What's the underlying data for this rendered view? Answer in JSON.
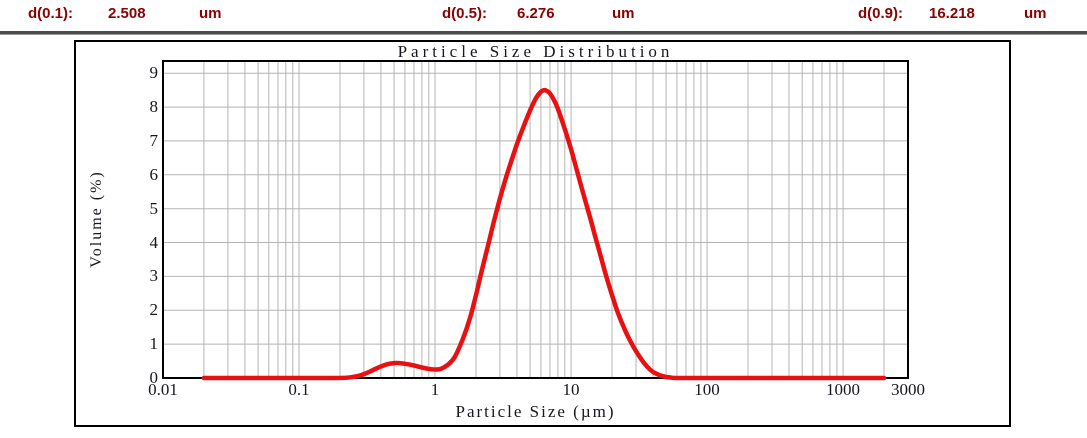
{
  "header": {
    "items": [
      {
        "label": "d(0.1):",
        "value": "2.508",
        "unit": "um"
      },
      {
        "label": "d(0.5):",
        "value": "6.276",
        "unit": "um"
      },
      {
        "label": "d(0.9):",
        "value": "16.218",
        "unit": "um"
      }
    ]
  },
  "chart_data": {
    "type": "line",
    "title": "Particle Size Distribution",
    "xlabel": "Particle Size (µm)",
    "ylabel": "Volume (%)",
    "x_scale": "log",
    "xlim": [
      0.01,
      3000
    ],
    "ylim": [
      0,
      9
    ],
    "grid": true,
    "legend": "none",
    "colors": {
      "curve": "#e81010",
      "grid": "#b5b5b5",
      "axis": "#000000",
      "text": "#16161e",
      "header_accent": "#8b0000"
    },
    "x_ticks": [
      {
        "v": 0.01,
        "label": "0.01"
      },
      {
        "v": 0.1,
        "label": "0.1"
      },
      {
        "v": 1,
        "label": "1"
      },
      {
        "v": 10,
        "label": "10"
      },
      {
        "v": 100,
        "label": "100"
      },
      {
        "v": 1000,
        "label": "1000"
      },
      {
        "v": 3000,
        "label": "3000"
      }
    ],
    "y_ticks": [
      {
        "v": 0,
        "label": "0"
      },
      {
        "v": 1,
        "label": "1"
      },
      {
        "v": 2,
        "label": "2"
      },
      {
        "v": 3,
        "label": "3"
      },
      {
        "v": 4,
        "label": "4"
      },
      {
        "v": 5,
        "label": "5"
      },
      {
        "v": 6,
        "label": "6"
      },
      {
        "v": 7,
        "label": "7"
      },
      {
        "v": 8,
        "label": "8"
      },
      {
        "v": 9,
        "label": "9"
      }
    ],
    "series": [
      {
        "name": "volume-distribution",
        "points": [
          [
            0.02,
            0
          ],
          [
            0.05,
            0
          ],
          [
            0.1,
            0
          ],
          [
            0.15,
            0
          ],
          [
            0.2,
            0
          ],
          [
            0.24,
            0.02
          ],
          [
            0.28,
            0.07
          ],
          [
            0.32,
            0.16
          ],
          [
            0.36,
            0.26
          ],
          [
            0.4,
            0.34
          ],
          [
            0.45,
            0.41
          ],
          [
            0.5,
            0.44
          ],
          [
            0.55,
            0.44
          ],
          [
            0.6,
            0.42
          ],
          [
            0.7,
            0.37
          ],
          [
            0.8,
            0.31
          ],
          [
            0.9,
            0.27
          ],
          [
            1.0,
            0.25
          ],
          [
            1.1,
            0.27
          ],
          [
            1.25,
            0.4
          ],
          [
            1.4,
            0.63
          ],
          [
            1.6,
            1.15
          ],
          [
            1.8,
            1.75
          ],
          [
            2.0,
            2.45
          ],
          [
            2.2,
            3.15
          ],
          [
            2.5,
            4.05
          ],
          [
            2.8,
            4.85
          ],
          [
            3.2,
            5.7
          ],
          [
            3.6,
            6.35
          ],
          [
            4.0,
            6.9
          ],
          [
            4.5,
            7.45
          ],
          [
            5.0,
            7.9
          ],
          [
            5.5,
            8.25
          ],
          [
            6.0,
            8.45
          ],
          [
            6.4,
            8.5
          ],
          [
            6.8,
            8.45
          ],
          [
            7.0,
            8.4
          ],
          [
            7.5,
            8.2
          ],
          [
            8.0,
            7.95
          ],
          [
            9.0,
            7.35
          ],
          [
            10,
            6.75
          ],
          [
            11,
            6.15
          ],
          [
            12,
            5.6
          ],
          [
            13,
            5.1
          ],
          [
            14,
            4.65
          ],
          [
            15,
            4.2
          ],
          [
            16,
            3.8
          ],
          [
            18,
            3.05
          ],
          [
            20,
            2.45
          ],
          [
            22,
            1.95
          ],
          [
            25,
            1.4
          ],
          [
            28,
            1.0
          ],
          [
            32,
            0.62
          ],
          [
            36,
            0.35
          ],
          [
            40,
            0.18
          ],
          [
            45,
            0.08
          ],
          [
            50,
            0.03
          ],
          [
            55,
            0.01
          ],
          [
            60,
            0
          ],
          [
            80,
            0
          ],
          [
            100,
            0
          ],
          [
            200,
            0
          ],
          [
            500,
            0
          ],
          [
            1000,
            0
          ],
          [
            1500,
            0
          ],
          [
            2000,
            0
          ]
        ]
      }
    ]
  }
}
